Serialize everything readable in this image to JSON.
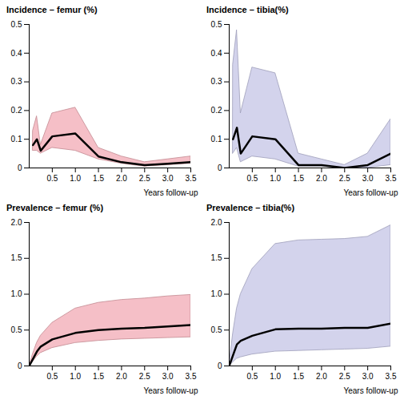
{
  "chart_data": [
    {
      "type": "line",
      "title": "Incidence – femur (%)",
      "x_label": "Years follow-up",
      "x": [
        0.083,
        0.167,
        0.25,
        0.5,
        1.0,
        1.5,
        2.0,
        2.5,
        3.0,
        3.5
      ],
      "values": [
        0.08,
        0.1,
        0.06,
        0.11,
        0.12,
        0.04,
        0.02,
        0.01,
        0.015,
        0.02
      ],
      "lower": [
        0.06,
        0.06,
        0.05,
        0.07,
        0.06,
        0.03,
        0.015,
        0.005,
        0.01,
        0.015
      ],
      "upper": [
        0.13,
        0.18,
        0.08,
        0.19,
        0.21,
        0.07,
        0.04,
        0.02,
        0.03,
        0.04
      ],
      "color": "#f2aab4",
      "xlim": [
        0,
        3.5
      ],
      "xticks": [
        0.5,
        {
          "value": 1,
          "label": "1.0"
        },
        1.5,
        {
          "value": 2,
          "label": "2.0"
        },
        2.5,
        {
          "value": 3,
          "label": "3.0"
        },
        3.5
      ],
      "ylim": [
        0,
        0.5
      ],
      "yticks": [
        0,
        0.1,
        0.2,
        0.3,
        0.4,
        0.5
      ],
      "grid": false
    },
    {
      "type": "line",
      "title": "Incidence – tibia(%)",
      "x_label": "Years follow-up",
      "x": [
        0.083,
        0.167,
        0.25,
        0.5,
        1.0,
        1.5,
        2.0,
        2.5,
        3.0,
        3.5
      ],
      "values": [
        0.1,
        0.14,
        0.05,
        0.11,
        0.1,
        0.01,
        0.01,
        0.0,
        0.01,
        0.05
      ],
      "lower": [
        0.05,
        0.07,
        0.02,
        0.04,
        0.03,
        0.005,
        0.005,
        0.0,
        0.0,
        0.01
      ],
      "upper": [
        0.36,
        0.48,
        0.19,
        0.35,
        0.33,
        0.05,
        0.03,
        0.01,
        0.05,
        0.17
      ],
      "color": "#c4c4e6",
      "xlim": [
        0,
        3.5
      ],
      "xticks": [
        0.5,
        {
          "value": 1,
          "label": "1.0"
        },
        1.5,
        {
          "value": 2,
          "label": "2.0"
        },
        2.5,
        {
          "value": 3,
          "label": "3.0"
        },
        3.5
      ],
      "ylim": [
        0,
        0.5
      ],
      "yticks": [
        0,
        0.1,
        0.2,
        0.3,
        0.4,
        0.5
      ],
      "grid": false
    },
    {
      "type": "line",
      "title": "Prevalence – femur (%)",
      "x_label": "Years follow-up",
      "x": [
        0,
        0.083,
        0.167,
        0.25,
        0.5,
        1.0,
        1.5,
        2.0,
        2.5,
        3.0,
        3.5
      ],
      "values": [
        0,
        0.1,
        0.2,
        0.27,
        0.37,
        0.46,
        0.5,
        0.52,
        0.53,
        0.55,
        0.57
      ],
      "lower": [
        0,
        0.06,
        0.13,
        0.18,
        0.25,
        0.32,
        0.35,
        0.37,
        0.38,
        0.39,
        0.4
      ],
      "upper": [
        0,
        0.17,
        0.32,
        0.42,
        0.6,
        0.8,
        0.88,
        0.92,
        0.94,
        0.97,
        0.99
      ],
      "color": "#f2aab4",
      "xlim": [
        0,
        3.5
      ],
      "xticks": [
        0.5,
        {
          "value": 1,
          "label": "1.0"
        },
        1.5,
        {
          "value": 2,
          "label": "2.0"
        },
        2.5,
        {
          "value": 3,
          "label": "3.0"
        },
        3.5
      ],
      "ylim": [
        0,
        2
      ],
      "yticks": [
        0,
        0.5,
        {
          "value": 1,
          "label": "1.0"
        },
        1.5,
        {
          "value": 2,
          "label": "2.0"
        }
      ],
      "grid": false
    },
    {
      "type": "line",
      "title": "Prevalence – tibia(%)",
      "x_label": "Years follow-up",
      "x": [
        0,
        0.083,
        0.167,
        0.25,
        0.5,
        1.0,
        1.5,
        2.0,
        2.5,
        3.0,
        3.5
      ],
      "values": [
        0,
        0.15,
        0.3,
        0.35,
        0.42,
        0.51,
        0.52,
        0.52,
        0.53,
        0.53,
        0.59
      ],
      "lower": [
        0,
        0.05,
        0.1,
        0.12,
        0.16,
        0.2,
        0.21,
        0.22,
        0.23,
        0.24,
        0.27
      ],
      "upper": [
        0,
        0.45,
        0.8,
        1.0,
        1.35,
        1.7,
        1.75,
        1.76,
        1.77,
        1.8,
        1.96
      ],
      "color": "#c4c4e6",
      "xlim": [
        0,
        3.5
      ],
      "xticks": [
        0.5,
        {
          "value": 1,
          "label": "1.0"
        },
        1.5,
        {
          "value": 2,
          "label": "2.0"
        },
        2.5,
        {
          "value": 3,
          "label": "3.0"
        },
        3.5
      ],
      "ylim": [
        0,
        2
      ],
      "yticks": [
        0,
        0.5,
        {
          "value": 1,
          "label": "1.0"
        },
        1.5,
        {
          "value": 2,
          "label": "2.0"
        }
      ],
      "grid": false
    }
  ]
}
